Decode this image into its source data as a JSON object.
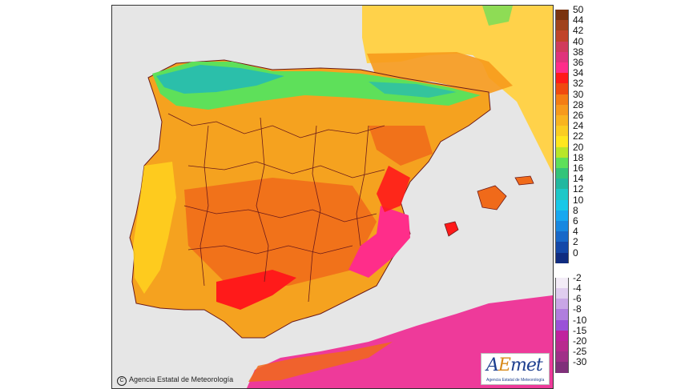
{
  "map": {
    "copyright": "Agencia Estatal de Meteorología",
    "logo_text": "AEmet",
    "logo_subtext": "Agencia Estatal de Meteorología",
    "colors": {
      "sea": "#e6e6e6",
      "land_base": "#f5a21f",
      "hot": "#f06a1a",
      "very_hot": "#ff1a1a",
      "extreme": "#ff2d8a",
      "mild": "#ffd21e",
      "cool": "#5ee05a",
      "cold": "#22b8b8",
      "france": "#ffd24a",
      "africa": "#ee3a9a",
      "borders": "#6b1a1a"
    }
  },
  "legend": {
    "warm_scale": [
      {
        "label": "50",
        "color": "#7a3410"
      },
      {
        "label": "44",
        "color": "#a0431c"
      },
      {
        "label": "42",
        "color": "#c0442a"
      },
      {
        "label": "40",
        "color": "#d03b5c"
      },
      {
        "label": "38",
        "color": "#e0337c"
      },
      {
        "label": "36",
        "color": "#ff2d8a"
      },
      {
        "label": "34",
        "color": "#ff1a1a"
      },
      {
        "label": "32",
        "color": "#f04a10"
      },
      {
        "label": "30",
        "color": "#f47d14"
      },
      {
        "label": "28",
        "color": "#f79a1c"
      },
      {
        "label": "26",
        "color": "#f9b420"
      },
      {
        "label": "24",
        "color": "#fbcd22"
      },
      {
        "label": "22",
        "color": "#ffe71e"
      },
      {
        "label": "20",
        "color": "#b8e62a"
      },
      {
        "label": "18",
        "color": "#5ee05a"
      },
      {
        "label": "16",
        "color": "#33c47a"
      },
      {
        "label": "14",
        "color": "#22b8a0"
      },
      {
        "label": "12",
        "color": "#1ec8c8"
      },
      {
        "label": "10",
        "color": "#18c8e8"
      },
      {
        "label": "8",
        "color": "#18a8f0"
      },
      {
        "label": "6",
        "color": "#1888e0"
      },
      {
        "label": "4",
        "color": "#1868c8"
      },
      {
        "label": "2",
        "color": "#1448a8"
      },
      {
        "label": "0",
        "color": "#102c80"
      }
    ],
    "cold_scale": [
      {
        "label": "-2",
        "color": "#f3ecf7"
      },
      {
        "label": "-4",
        "color": "#e0cdef"
      },
      {
        "label": "-6",
        "color": "#c9a6e6"
      },
      {
        "label": "-8",
        "color": "#b07ede"
      },
      {
        "label": "-10",
        "color": "#9a52d8"
      },
      {
        "label": "-15",
        "color": "#c0229e"
      },
      {
        "label": "-20",
        "color": "#b82a8e"
      },
      {
        "label": "-25",
        "color": "#a03088"
      },
      {
        "label": "-30",
        "color": "#80307a"
      }
    ]
  }
}
